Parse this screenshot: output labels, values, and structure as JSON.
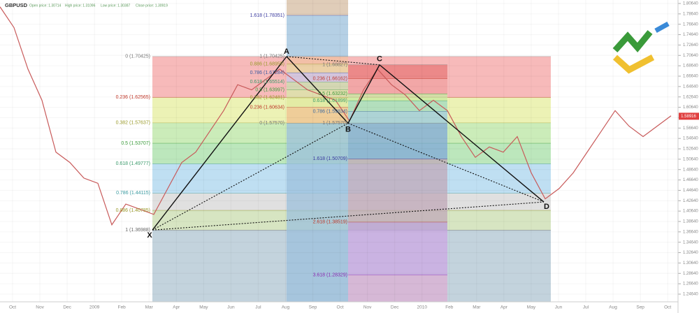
{
  "chart_data": {
    "type": "harmonic",
    "symbol": "GBPUSD",
    "ohlc": [
      "Open price: 1.30714",
      "High price: 1.31096",
      "Low price: 1.30387",
      "Close price: 1.30919"
    ],
    "last_price": {
      "value": 1.58916,
      "label": "1.58916"
    },
    "ylim": [
      1.2464,
      1.8064
    ],
    "yticks": [
      {
        "value": 1.8064,
        "label": "1.80640"
      },
      {
        "value": 1.7864,
        "label": "1.78640"
      },
      {
        "value": 1.7664,
        "label": "1.76640"
      },
      {
        "value": 1.7464,
        "label": "1.74640"
      },
      {
        "value": 1.7264,
        "label": "1.72640"
      },
      {
        "value": 1.7064,
        "label": "1.70640"
      },
      {
        "value": 1.6864,
        "label": "1.68640"
      },
      {
        "value": 1.6664,
        "label": "1.66640"
      },
      {
        "value": 1.6464,
        "label": "1.64640"
      },
      {
        "value": 1.6264,
        "label": "1.62640"
      },
      {
        "value": 1.6064,
        "label": "1.60640"
      },
      {
        "value": 1.5864,
        "label": "1.58640"
      },
      {
        "value": 1.5664,
        "label": "1.56640"
      },
      {
        "value": 1.5464,
        "label": "1.54640"
      },
      {
        "value": 1.5264,
        "label": "1.52640"
      },
      {
        "value": 1.5064,
        "label": "1.50640"
      },
      {
        "value": 1.4864,
        "label": "1.48640"
      },
      {
        "value": 1.4664,
        "label": "1.46640"
      },
      {
        "value": 1.4464,
        "label": "1.44640"
      },
      {
        "value": 1.4264,
        "label": "1.42640"
      },
      {
        "value": 1.4064,
        "label": "1.40640"
      },
      {
        "value": 1.3864,
        "label": "1.38640"
      },
      {
        "value": 1.3664,
        "label": "1.36640"
      },
      {
        "value": 1.3464,
        "label": "1.34640"
      },
      {
        "value": 1.3264,
        "label": "1.32640"
      },
      {
        "value": 1.3064,
        "label": "1.30640"
      },
      {
        "value": 1.2864,
        "label": "1.28640"
      },
      {
        "value": 1.2664,
        "label": "1.26640"
      },
      {
        "value": 1.2464,
        "label": "1.24640"
      }
    ],
    "categories": [
      "Oct",
      "Nov",
      "Dec",
      "2009",
      "Feb",
      "Mar",
      "Apr",
      "May",
      "Jun",
      "Jul",
      "Aug",
      "Sep",
      "Oct",
      "Nov",
      "Dec",
      "2010",
      "Feb",
      "Mar",
      "Apr",
      "May",
      "Jun",
      "Jul",
      "Aug",
      "Sep",
      "Oct"
    ],
    "price": {
      "color": "#c85a5a",
      "values": [
        1.8,
        1.76,
        1.68,
        1.62,
        1.52,
        1.5,
        1.47,
        1.46,
        1.38,
        1.42,
        1.41,
        1.4,
        1.45,
        1.5,
        1.52,
        1.56,
        1.6,
        1.65,
        1.64,
        1.66,
        1.68,
        1.66,
        1.64,
        1.63,
        1.62,
        1.58,
        1.64,
        1.68,
        1.65,
        1.63,
        1.6,
        1.62,
        1.6,
        1.55,
        1.51,
        1.53,
        1.52,
        1.55,
        1.48,
        1.43,
        1.45,
        1.48,
        1.52,
        1.56,
        1.6,
        1.57,
        1.55,
        1.57,
        1.59
      ]
    },
    "fib_sets": [
      {
        "levels": [
          {
            "label": "0 (1.70425)",
            "price": 1.70425,
            "color": "#f4a3a3",
            "text_color": "#777777"
          },
          {
            "label": "0.236 (1.62565)",
            "price": 1.62565,
            "color": "#e6ee9c",
            "text_color": "#c0392b"
          },
          {
            "label": "0.382 (1.57637)",
            "price": 1.57637,
            "color": "#b9e6a2",
            "text_color": "#9a9a2a"
          },
          {
            "label": "0.5 (1.53707)",
            "price": 1.53707,
            "color": "#a6dfa6",
            "text_color": "#3a9a3a"
          },
          {
            "label": "0.618 (1.49777)",
            "price": 1.49777,
            "color": "#a9d4ee",
            "text_color": "#3a9a6a"
          },
          {
            "label": "0.786 (1.44115)",
            "price": 1.44115,
            "color": "#d6d6d6",
            "text_color": "#3a9aa0"
          },
          {
            "label": "0.886 (1.40785)",
            "price": 1.40785,
            "color": "#c9dcae",
            "text_color": "#9a9a2a"
          },
          {
            "label": "1 (1.36988)",
            "price": 1.36988,
            "color": "#b4c8d4",
            "text_color": "#666666"
          }
        ]
      },
      {
        "levels": [
          {
            "label": "1.618 (1.78351)",
            "price": 1.78351,
            "color": "#9cc0dc",
            "text_color": "#3a3aa0"
          },
          {
            "label": "1 (1.70425)",
            "price": 1.70425,
            "color": "#f0c0a0",
            "text_color": "#777777"
          },
          {
            "label": "0.886 (1.68955)",
            "price": 1.68955,
            "color": "#e8d8a0",
            "text_color": "#9a9a2a"
          },
          {
            "label": "0.786 (1.67284)",
            "price": 1.67284,
            "color": "#c8c8e8",
            "text_color": "#3a5aa0"
          },
          {
            "label": "0.618 (1.65514)",
            "price": 1.65514,
            "color": "#c8e0b0",
            "text_color": "#3a9a6a"
          },
          {
            "label": "0.5 (1.63997)",
            "price": 1.63997,
            "color": "#d8e8a8",
            "text_color": "#3a9a3a"
          },
          {
            "label": "0.382 (1.62481)",
            "price": 1.62481,
            "color": "#e0e8a0",
            "text_color": "#9a9a2a"
          },
          {
            "label": "0.236 (1.60634)",
            "price": 1.60634,
            "color": "#f0c090",
            "text_color": "#c0392b"
          },
          {
            "label": "0 (1.57570)",
            "price": 1.5757,
            "color": "#9cc0dc",
            "text_color": "#777777"
          }
        ]
      },
      {
        "levels": [
          {
            "label": "1 (1.68827)",
            "price": 1.68827,
            "color": "#e87878",
            "text_color": "#777777"
          },
          {
            "label": "0.236 (1.66162)",
            "price": 1.66162,
            "color": "#f0a0a0",
            "text_color": "#c0392b"
          },
          {
            "label": "0.5 (1.63232)",
            "price": 1.63232,
            "color": "#c8e8a0",
            "text_color": "#3a9a3a"
          },
          {
            "label": "0.618 (1.61899)",
            "price": 1.61899,
            "color": "#a0d8c0",
            "text_color": "#3a9a6a"
          },
          {
            "label": "0.786 (1.59834)",
            "price": 1.59834,
            "color": "#98c8e0",
            "text_color": "#3a6aa0"
          },
          {
            "label": "1 (1.57570)",
            "price": 1.5757,
            "color": "#80a8d8",
            "text_color": "#777777"
          },
          {
            "label": "1.618 (1.50709)",
            "price": 1.50709,
            "color": "#c0a8b8",
            "text_color": "#3a3aa0"
          },
          {
            "label": "2.618 (1.38519)",
            "price": 1.38519,
            "color": "#b89ad8",
            "text_color": "#c0392b"
          },
          {
            "label": "3.618 (1.28329)",
            "price": 1.28329,
            "color": "#c8a0c8",
            "text_color": "#8a2ab0"
          }
        ]
      }
    ],
    "points": [
      {
        "label": "X",
        "price": 1.36988
      },
      {
        "label": "A",
        "price": 1.70425
      },
      {
        "label": "B",
        "price": 1.5757
      },
      {
        "label": "C",
        "price": 1.68827
      },
      {
        "label": "D",
        "price": 1.424
      }
    ]
  }
}
